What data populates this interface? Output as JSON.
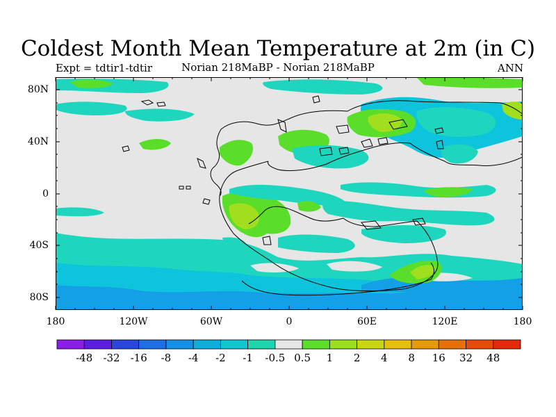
{
  "title": "Coldest Month Mean Temperature at 2m (in C)",
  "subtitle_left": "Expt = tdtir1-tdtir",
  "subtitle_center": "Norian   218MaBP - Norian   218MaBP",
  "subtitle_right": "ANN",
  "lat_labels": [
    "80N",
    "40N",
    "0",
    "40S",
    "80S"
  ],
  "lon_labels": [
    "180",
    "120W",
    "60W",
    "0",
    "60E",
    "120E",
    "180"
  ],
  "colorbar": {
    "labels": [
      "-48",
      "-32",
      "-16",
      "-8",
      "-4",
      "-2",
      "-1",
      "-0.5",
      "0.5",
      "1",
      "2",
      "4",
      "8",
      "16",
      "32",
      "48"
    ],
    "colors": [
      "#8a1de6",
      "#5a1ee0",
      "#2a46e0",
      "#1e6ee6",
      "#1491e6",
      "#0eaedc",
      "#10c6d2",
      "#1ed6ae",
      "#e6e6e6",
      "#5ade2a",
      "#9ade1e",
      "#c8d614",
      "#e6be0e",
      "#e69a0a",
      "#e6700a",
      "#e64a0a",
      "#e6280a"
    ]
  },
  "colors": {
    "neutral": "#e6e6e6",
    "cyan": "#1ed6be",
    "light_blue": "#0ec4dc",
    "blue": "#14a0e6",
    "green": "#5ade2a",
    "yellow_green": "#a0de1e",
    "olive": "#c8d614"
  }
}
